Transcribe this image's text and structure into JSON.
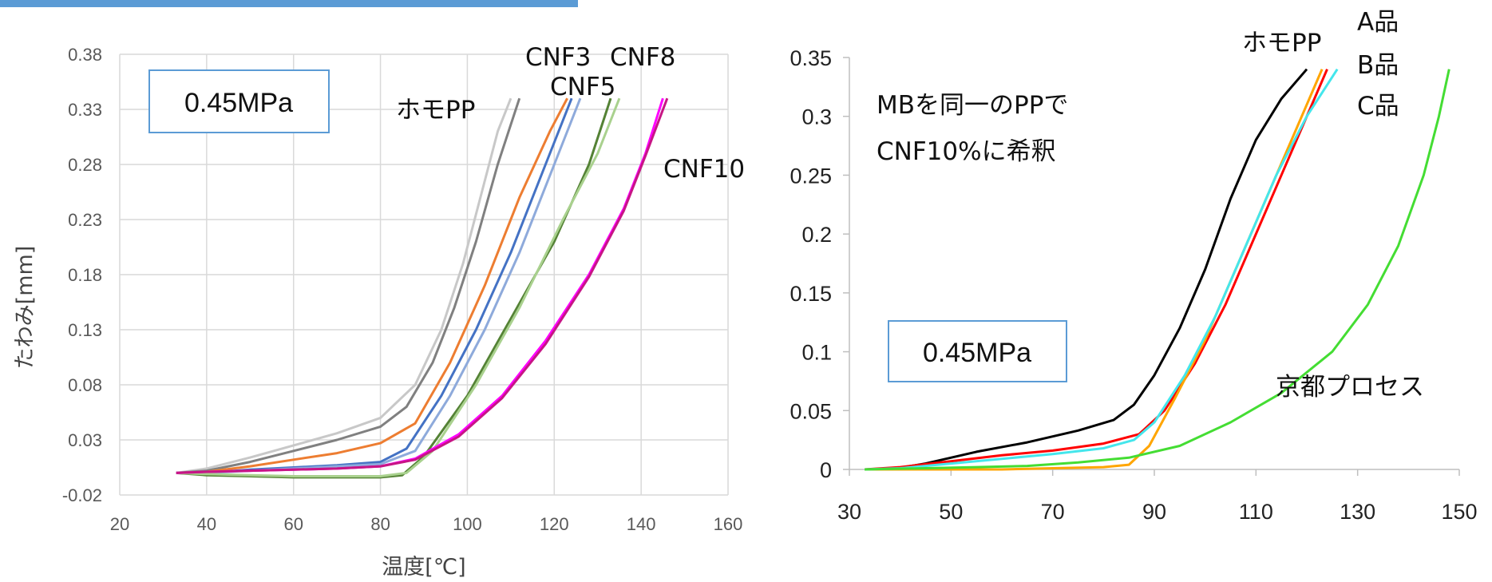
{
  "colors": {
    "accent_bar": "#5b9bd5",
    "box_border": "#5b9bd5"
  },
  "left_chart": {
    "box_label": "0.45MPa",
    "curve_labels": [
      {
        "text": "ホモPP"
      },
      {
        "text": "CNF3"
      },
      {
        "text": "CNF8"
      },
      {
        "text": "CNF5"
      },
      {
        "text": "CNF10"
      }
    ]
  },
  "right_chart": {
    "annotation_line1": "MBを同一のPPで",
    "annotation_line2": "CNF10%に希釈",
    "box_label": "0.45MPa",
    "curve_labels": [
      {
        "text": "ホモPP"
      },
      {
        "text": "A品"
      },
      {
        "text": "B品"
      },
      {
        "text": "C品"
      },
      {
        "text": "京都プロセス"
      }
    ]
  },
  "chart_data": [
    {
      "type": "line",
      "title": "",
      "xlabel": "温度[℃]",
      "ylabel": "たわみ[mm]",
      "xlim": [
        20,
        160
      ],
      "ylim": [
        -0.02,
        0.38
      ],
      "x_ticks": [
        20,
        40,
        60,
        80,
        100,
        120,
        140,
        160
      ],
      "y_ticks": [
        -0.02,
        0.03,
        0.08,
        0.13,
        0.18,
        0.23,
        0.28,
        0.33,
        0.38
      ],
      "grid": true,
      "series": [
        {
          "name": "ホモPP",
          "color": "#c8c8c8",
          "points": [
            [
              33,
              0
            ],
            [
              40,
              0.004
            ],
            [
              50,
              0.014
            ],
            [
              60,
              0.025
            ],
            [
              70,
              0.036
            ],
            [
              80,
              0.05
            ],
            [
              88,
              0.08
            ],
            [
              94,
              0.13
            ],
            [
              99,
              0.19
            ],
            [
              103,
              0.25
            ],
            [
              107,
              0.31
            ],
            [
              110,
              0.34
            ]
          ]
        },
        {
          "name": "ホモPP",
          "color": "#808080",
          "points": [
            [
              33,
              0
            ],
            [
              40,
              0.002
            ],
            [
              50,
              0.01
            ],
            [
              60,
              0.02
            ],
            [
              70,
              0.03
            ],
            [
              80,
              0.042
            ],
            [
              86,
              0.06
            ],
            [
              92,
              0.1
            ],
            [
              97,
              0.15
            ],
            [
              102,
              0.21
            ],
            [
              107,
              0.28
            ],
            [
              112,
              0.34
            ]
          ]
        },
        {
          "name": "CNF3",
          "color": "#ed7d31",
          "points": [
            [
              33,
              0
            ],
            [
              40,
              0.001
            ],
            [
              50,
              0.006
            ],
            [
              60,
              0.012
            ],
            [
              70,
              0.018
            ],
            [
              80,
              0.027
            ],
            [
              88,
              0.045
            ],
            [
              96,
              0.1
            ],
            [
              104,
              0.17
            ],
            [
              112,
              0.25
            ],
            [
              119,
              0.31
            ],
            [
              123,
              0.34
            ]
          ]
        },
        {
          "name": "CNF5",
          "color": "#4472c4",
          "points": [
            [
              33,
              0
            ],
            [
              40,
              0
            ],
            [
              50,
              0.003
            ],
            [
              60,
              0.005
            ],
            [
              70,
              0.007
            ],
            [
              80,
              0.01
            ],
            [
              86,
              0.022
            ],
            [
              94,
              0.07
            ],
            [
              102,
              0.13
            ],
            [
              110,
              0.2
            ],
            [
              118,
              0.28
            ],
            [
              124,
              0.34
            ]
          ]
        },
        {
          "name": "CNF5",
          "color": "#8eaadb",
          "points": [
            [
              33,
              0
            ],
            [
              40,
              0
            ],
            [
              50,
              0.002
            ],
            [
              60,
              0.004
            ],
            [
              70,
              0.006
            ],
            [
              80,
              0.008
            ],
            [
              88,
              0.02
            ],
            [
              96,
              0.07
            ],
            [
              104,
              0.13
            ],
            [
              112,
              0.2
            ],
            [
              120,
              0.28
            ],
            [
              126,
              0.34
            ]
          ]
        },
        {
          "name": "CNF8",
          "color": "#548235",
          "points": [
            [
              33,
              0
            ],
            [
              40,
              -0.002
            ],
            [
              50,
              -0.003
            ],
            [
              60,
              -0.004
            ],
            [
              70,
              -0.004
            ],
            [
              80,
              -0.004
            ],
            [
              85,
              -0.002
            ],
            [
              90,
              0.015
            ],
            [
              100,
              0.07
            ],
            [
              110,
              0.14
            ],
            [
              120,
              0.21
            ],
            [
              128,
              0.28
            ],
            [
              133,
              0.34
            ]
          ]
        },
        {
          "name": "CNF8",
          "color": "#a9d18e",
          "points": [
            [
              33,
              0
            ],
            [
              40,
              -0.001
            ],
            [
              50,
              -0.002
            ],
            [
              60,
              -0.003
            ],
            [
              70,
              -0.003
            ],
            [
              80,
              -0.003
            ],
            [
              86,
              0
            ],
            [
              92,
              0.02
            ],
            [
              102,
              0.08
            ],
            [
              112,
              0.15
            ],
            [
              122,
              0.23
            ],
            [
              130,
              0.29
            ],
            [
              135,
              0.34
            ]
          ]
        },
        {
          "name": "CNF10",
          "color": "#ff00ff",
          "points": [
            [
              33,
              0
            ],
            [
              40,
              0.001
            ],
            [
              50,
              0.002
            ],
            [
              60,
              0.003
            ],
            [
              70,
              0.004
            ],
            [
              80,
              0.006
            ],
            [
              88,
              0.013
            ],
            [
              98,
              0.035
            ],
            [
              108,
              0.07
            ],
            [
              118,
              0.12
            ],
            [
              128,
              0.18
            ],
            [
              136,
              0.24
            ],
            [
              141,
              0.29
            ],
            [
              145,
              0.34
            ]
          ]
        },
        {
          "name": "CNF10",
          "color": "#c71585",
          "points": [
            [
              33,
              0
            ],
            [
              40,
              0.001
            ],
            [
              50,
              0.002
            ],
            [
              60,
              0.003
            ],
            [
              70,
              0.004
            ],
            [
              80,
              0.006
            ],
            [
              88,
              0.012
            ],
            [
              98,
              0.033
            ],
            [
              108,
              0.068
            ],
            [
              118,
              0.117
            ],
            [
              128,
              0.178
            ],
            [
              136,
              0.238
            ],
            [
              141,
              0.288
            ],
            [
              146,
              0.34
            ]
          ]
        }
      ]
    },
    {
      "type": "line",
      "title": "",
      "xlabel": "",
      "ylabel": "",
      "xlim": [
        30,
        150
      ],
      "ylim": [
        0,
        0.35
      ],
      "x_ticks": [
        30,
        50,
        70,
        90,
        110,
        130,
        150
      ],
      "y_ticks": [
        0,
        0.05,
        0.1,
        0.15,
        0.2,
        0.25,
        0.3,
        0.35
      ],
      "grid": false,
      "series": [
        {
          "name": "ホモPP",
          "color": "#000000",
          "points": [
            [
              38,
              0
            ],
            [
              45,
              0.005
            ],
            [
              55,
              0.015
            ],
            [
              65,
              0.023
            ],
            [
              75,
              0.033
            ],
            [
              82,
              0.042
            ],
            [
              86,
              0.055
            ],
            [
              90,
              0.08
            ],
            [
              95,
              0.12
            ],
            [
              100,
              0.17
            ],
            [
              105,
              0.23
            ],
            [
              110,
              0.28
            ],
            [
              115,
              0.315
            ],
            [
              120,
              0.34
            ]
          ]
        },
        {
          "name": "A品",
          "color": "#ff0000",
          "points": [
            [
              33,
              0
            ],
            [
              40,
              0.002
            ],
            [
              50,
              0.007
            ],
            [
              60,
              0.012
            ],
            [
              70,
              0.016
            ],
            [
              80,
              0.022
            ],
            [
              87,
              0.03
            ],
            [
              92,
              0.05
            ],
            [
              98,
              0.09
            ],
            [
              104,
              0.14
            ],
            [
              110,
              0.2
            ],
            [
              116,
              0.26
            ],
            [
              121,
              0.31
            ],
            [
              124,
              0.34
            ]
          ]
        },
        {
          "name": "B品",
          "color": "#ffa500",
          "points": [
            [
              33,
              0
            ],
            [
              40,
              0
            ],
            [
              50,
              0
            ],
            [
              60,
              0
            ],
            [
              70,
              0.001
            ],
            [
              80,
              0.002
            ],
            [
              85,
              0.004
            ],
            [
              89,
              0.02
            ],
            [
              94,
              0.06
            ],
            [
              100,
              0.11
            ],
            [
              106,
              0.17
            ],
            [
              112,
              0.23
            ],
            [
              118,
              0.29
            ],
            [
              123,
              0.34
            ]
          ]
        },
        {
          "name": "C品",
          "color": "#44e6ec",
          "points": [
            [
              33,
              0
            ],
            [
              40,
              0.001
            ],
            [
              50,
              0.005
            ],
            [
              60,
              0.009
            ],
            [
              70,
              0.013
            ],
            [
              80,
              0.018
            ],
            [
              86,
              0.025
            ],
            [
              90,
              0.04
            ],
            [
              96,
              0.08
            ],
            [
              102,
              0.13
            ],
            [
              108,
              0.19
            ],
            [
              114,
              0.25
            ],
            [
              120,
              0.3
            ],
            [
              126,
              0.34
            ]
          ]
        },
        {
          "name": "京都プロセス",
          "color": "#44dd33",
          "points": [
            [
              33,
              0
            ],
            [
              45,
              0.001
            ],
            [
              55,
              0.002
            ],
            [
              65,
              0.003
            ],
            [
              75,
              0.006
            ],
            [
              85,
              0.01
            ],
            [
              95,
              0.02
            ],
            [
              105,
              0.04
            ],
            [
              115,
              0.065
            ],
            [
              125,
              0.1
            ],
            [
              132,
              0.14
            ],
            [
              138,
              0.19
            ],
            [
              143,
              0.25
            ],
            [
              146,
              0.3
            ],
            [
              148,
              0.34
            ]
          ]
        }
      ]
    }
  ]
}
